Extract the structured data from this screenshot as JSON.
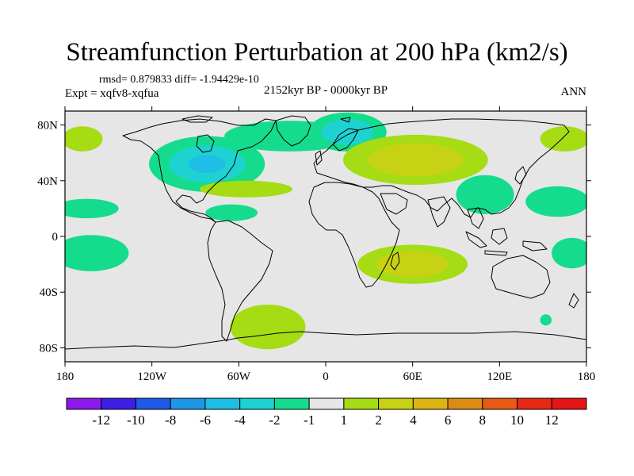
{
  "chart_data": {
    "type": "heatmap",
    "title": "Streamfunction Perturbation at 200 hPa (km2/s)",
    "stats_text": "rmsd= 0.879833 diff= -1.94429e-10",
    "experiment_text": "Expt = xqfv8-xqfua",
    "period_text": "2152kyr BP - 0000kyr BP",
    "season_text": "ANN",
    "xlim": [
      -180,
      180
    ],
    "ylim": [
      -90,
      90
    ],
    "x_ticks": [
      {
        "value": -180,
        "label": "180"
      },
      {
        "value": -120,
        "label": "120W"
      },
      {
        "value": -60,
        "label": "60W"
      },
      {
        "value": 0,
        "label": "0"
      },
      {
        "value": 60,
        "label": "60E"
      },
      {
        "value": 120,
        "label": "120E"
      },
      {
        "value": 180,
        "label": "180"
      }
    ],
    "y_ticks": [
      {
        "value": 80,
        "label": "80N"
      },
      {
        "value": 40,
        "label": "40N"
      },
      {
        "value": 0,
        "label": "0"
      },
      {
        "value": -40,
        "label": "40S"
      },
      {
        "value": -80,
        "label": "80S"
      }
    ],
    "colorbar": {
      "labels": [
        "-12",
        "-10",
        "-8",
        "-6",
        "-4",
        "-2",
        "-1",
        "1",
        "2",
        "4",
        "6",
        "8",
        "10",
        "12"
      ],
      "colors": [
        "#8c1aec",
        "#3c1ee6",
        "#1e5ae6",
        "#1e96e6",
        "#1ebee6",
        "#1ed2d2",
        "#14dc8c",
        "#e6e6e6",
        "#a5dc14",
        "#c8d214",
        "#dcb414",
        "#dc8c14",
        "#e65a14",
        "#e62814",
        "#e61414"
      ]
    },
    "background_level_color": "#e6e6e6",
    "anomalies": [
      {
        "name": "north-america-low",
        "lon": -82,
        "lat": 52,
        "rlon": 40,
        "rlat": 20,
        "levels": [
          {
            "value": -1.5,
            "color": "#14dc8c"
          },
          {
            "value": -2.5,
            "color": "#1ed2d2"
          },
          {
            "value": -3,
            "color": "#1ebee6"
          }
        ]
      },
      {
        "name": "north-atlantic-low",
        "lon": -25,
        "lat": 72,
        "rlon": 45,
        "rlat": 11,
        "levels": [
          {
            "value": -1.5,
            "color": "#14dc8c"
          }
        ]
      },
      {
        "name": "scandinavia-low",
        "lon": 15,
        "lat": 75,
        "rlon": 27,
        "rlat": 14,
        "levels": [
          {
            "value": -1.5,
            "color": "#14dc8c"
          },
          {
            "value": -2,
            "color": "#1ed2d2"
          }
        ]
      },
      {
        "name": "eurasia-high",
        "lon": 62,
        "lat": 55,
        "rlon": 50,
        "rlat": 18,
        "levels": [
          {
            "value": 1.5,
            "color": "#a5dc14"
          },
          {
            "value": 2.5,
            "color": "#c8d214"
          }
        ]
      },
      {
        "name": "atlantic-high",
        "lon": -55,
        "lat": 34,
        "rlon": 32,
        "rlat": 6,
        "levels": [
          {
            "value": 1.5,
            "color": "#a5dc14"
          }
        ]
      },
      {
        "name": "east-asia-low",
        "lon": 110,
        "lat": 30,
        "rlon": 20,
        "rlat": 14,
        "levels": [
          {
            "value": -1.5,
            "color": "#14dc8c"
          }
        ]
      },
      {
        "name": "west-pacific-low",
        "lon": 160,
        "lat": 25,
        "rlon": 22,
        "rlat": 11,
        "levels": [
          {
            "value": -1.5,
            "color": "#14dc8c"
          }
        ]
      },
      {
        "name": "north-pacific-high-west",
        "lon": 165,
        "lat": 70,
        "rlon": 17,
        "rlat": 9,
        "levels": [
          {
            "value": 1.5,
            "color": "#a5dc14"
          }
        ]
      },
      {
        "name": "north-pacific-high-east",
        "lon": -168,
        "lat": 70,
        "rlon": 14,
        "rlat": 9,
        "levels": [
          {
            "value": 1.5,
            "color": "#a5dc14"
          }
        ]
      },
      {
        "name": "northeast-pacific-low",
        "lon": -165,
        "lat": 20,
        "rlon": 22,
        "rlat": 7,
        "levels": [
          {
            "value": -1.5,
            "color": "#14dc8c"
          }
        ]
      },
      {
        "name": "caribbean-low",
        "lon": -65,
        "lat": 17,
        "rlon": 18,
        "rlat": 6,
        "levels": [
          {
            "value": -1.5,
            "color": "#14dc8c"
          }
        ]
      },
      {
        "name": "southeast-pacific-low",
        "lon": -162,
        "lat": -12,
        "rlon": 26,
        "rlat": 13,
        "levels": [
          {
            "value": -1.5,
            "color": "#14dc8c"
          }
        ]
      },
      {
        "name": "south-pacific-low",
        "lon": 170,
        "lat": -12,
        "rlon": 14,
        "rlat": 11,
        "levels": [
          {
            "value": -1.5,
            "color": "#14dc8c"
          }
        ]
      },
      {
        "name": "indian-ocean-high",
        "lon": 60,
        "lat": -20,
        "rlon": 38,
        "rlat": 14,
        "levels": [
          {
            "value": 1.5,
            "color": "#a5dc14"
          },
          {
            "value": 2.5,
            "color": "#c8d214"
          }
        ]
      },
      {
        "name": "south-atlantic-high",
        "lon": -40,
        "lat": -65,
        "rlon": 26,
        "rlat": 16,
        "levels": [
          {
            "value": 1.5,
            "color": "#a5dc14"
          }
        ]
      },
      {
        "name": "tasman-low",
        "lon": 152,
        "lat": -60,
        "rlon": 4,
        "rlat": 4,
        "levels": [
          {
            "value": -1.5,
            "color": "#14dc8c"
          }
        ]
      }
    ]
  }
}
